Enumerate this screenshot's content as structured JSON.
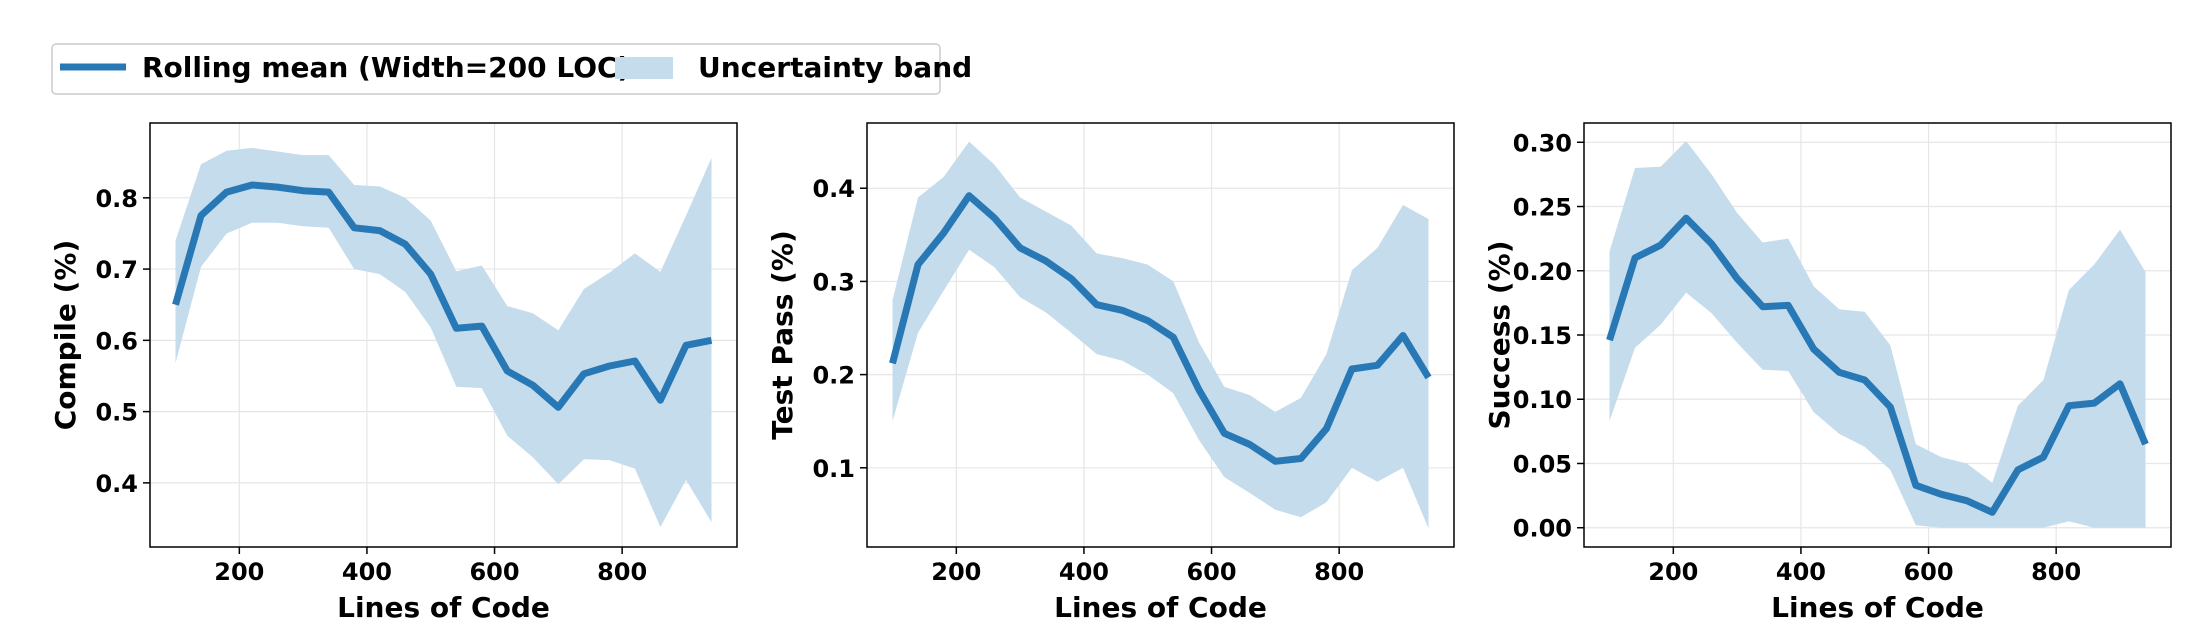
{
  "colors": {
    "line": "#2878b5",
    "band": "#c5dcec",
    "grid": "#e6e6e6",
    "axis": "#000000"
  },
  "legend": {
    "placement": "top-left",
    "items": [
      {
        "kind": "line",
        "label": "Rolling mean (Width=200 LOC)"
      },
      {
        "kind": "band",
        "label": "Uncertainty band"
      }
    ]
  },
  "chart_data": [
    {
      "type": "line",
      "xlabel": "Lines of Code",
      "ylabel": "Compile (%)",
      "xlim": [
        60,
        980
      ],
      "ylim": [
        0.31,
        0.905
      ],
      "xticks": [
        200,
        400,
        600,
        800
      ],
      "yticks": [
        0.4,
        0.5,
        0.6,
        0.7,
        0.8
      ],
      "grid": true,
      "x": [
        100,
        140,
        180,
        220,
        260,
        300,
        340,
        380,
        420,
        460,
        500,
        540,
        580,
        620,
        660,
        700,
        740,
        780,
        820,
        860,
        900,
        940
      ],
      "mean": [
        0.65,
        0.775,
        0.808,
        0.818,
        0.815,
        0.81,
        0.808,
        0.758,
        0.754,
        0.735,
        0.693,
        0.617,
        0.62,
        0.557,
        0.537,
        0.506,
        0.553,
        0.564,
        0.571,
        0.516,
        0.593,
        0.6
      ],
      "upper": [
        0.74,
        0.847,
        0.866,
        0.87,
        0.865,
        0.86,
        0.86,
        0.818,
        0.816,
        0.8,
        0.768,
        0.697,
        0.705,
        0.648,
        0.638,
        0.614,
        0.672,
        0.695,
        0.722,
        0.696,
        0.775,
        0.856
      ],
      "lower": [
        0.568,
        0.703,
        0.75,
        0.765,
        0.765,
        0.76,
        0.758,
        0.7,
        0.693,
        0.668,
        0.618,
        0.535,
        0.533,
        0.466,
        0.436,
        0.398,
        0.433,
        0.432,
        0.42,
        0.338,
        0.404,
        0.345
      ]
    },
    {
      "type": "line",
      "xlabel": "Lines of Code",
      "ylabel": "Test Pass (%)",
      "xlim": [
        60,
        980
      ],
      "ylim": [
        0.015,
        0.47
      ],
      "xticks": [
        200,
        400,
        600,
        800
      ],
      "yticks": [
        0.1,
        0.2,
        0.3,
        0.4
      ],
      "grid": true,
      "x": [
        100,
        140,
        180,
        220,
        260,
        300,
        340,
        380,
        420,
        460,
        500,
        540,
        580,
        620,
        660,
        700,
        740,
        780,
        820,
        860,
        900,
        940
      ],
      "mean": [
        0.212,
        0.318,
        0.352,
        0.392,
        0.368,
        0.336,
        0.322,
        0.303,
        0.275,
        0.269,
        0.258,
        0.24,
        0.184,
        0.137,
        0.125,
        0.107,
        0.11,
        0.142,
        0.206,
        0.21,
        0.242,
        0.197
      ],
      "upper": [
        0.28,
        0.39,
        0.412,
        0.45,
        0.425,
        0.39,
        0.375,
        0.36,
        0.33,
        0.325,
        0.318,
        0.3,
        0.235,
        0.187,
        0.178,
        0.16,
        0.175,
        0.222,
        0.312,
        0.336,
        0.382,
        0.367
      ],
      "lower": [
        0.15,
        0.245,
        0.29,
        0.334,
        0.315,
        0.283,
        0.267,
        0.245,
        0.222,
        0.215,
        0.2,
        0.18,
        0.13,
        0.09,
        0.073,
        0.055,
        0.047,
        0.063,
        0.1,
        0.085,
        0.1,
        0.035
      ]
    },
    {
      "type": "line",
      "xlabel": "Lines of Code",
      "ylabel": "Success (%)",
      "xlim": [
        60,
        980
      ],
      "ylim": [
        -0.015,
        0.315
      ],
      "xticks": [
        200,
        400,
        600,
        800
      ],
      "yticks": [
        0.0,
        0.05,
        0.1,
        0.15,
        0.2,
        0.25,
        0.3
      ],
      "ytick_labels": [
        "0.00",
        "0.05",
        "0.10",
        "0.15",
        "0.20",
        "0.25",
        "0.30"
      ],
      "grid": true,
      "x": [
        100,
        140,
        180,
        220,
        260,
        300,
        340,
        380,
        420,
        460,
        500,
        540,
        580,
        620,
        660,
        700,
        740,
        780,
        820,
        860,
        900,
        940
      ],
      "mean": [
        0.146,
        0.21,
        0.22,
        0.241,
        0.221,
        0.194,
        0.172,
        0.173,
        0.139,
        0.121,
        0.115,
        0.094,
        0.033,
        0.026,
        0.021,
        0.012,
        0.045,
        0.055,
        0.095,
        0.097,
        0.112,
        0.065
      ],
      "upper": [
        0.215,
        0.28,
        0.281,
        0.301,
        0.275,
        0.245,
        0.222,
        0.225,
        0.188,
        0.17,
        0.168,
        0.142,
        0.065,
        0.055,
        0.05,
        0.035,
        0.095,
        0.115,
        0.185,
        0.205,
        0.232,
        0.199
      ],
      "lower": [
        0.083,
        0.14,
        0.158,
        0.183,
        0.167,
        0.144,
        0.123,
        0.122,
        0.09,
        0.073,
        0.063,
        0.045,
        0.002,
        0.0,
        0.0,
        0.0,
        0.0,
        0.0,
        0.005,
        0.0,
        0.0,
        0.0
      ]
    }
  ]
}
